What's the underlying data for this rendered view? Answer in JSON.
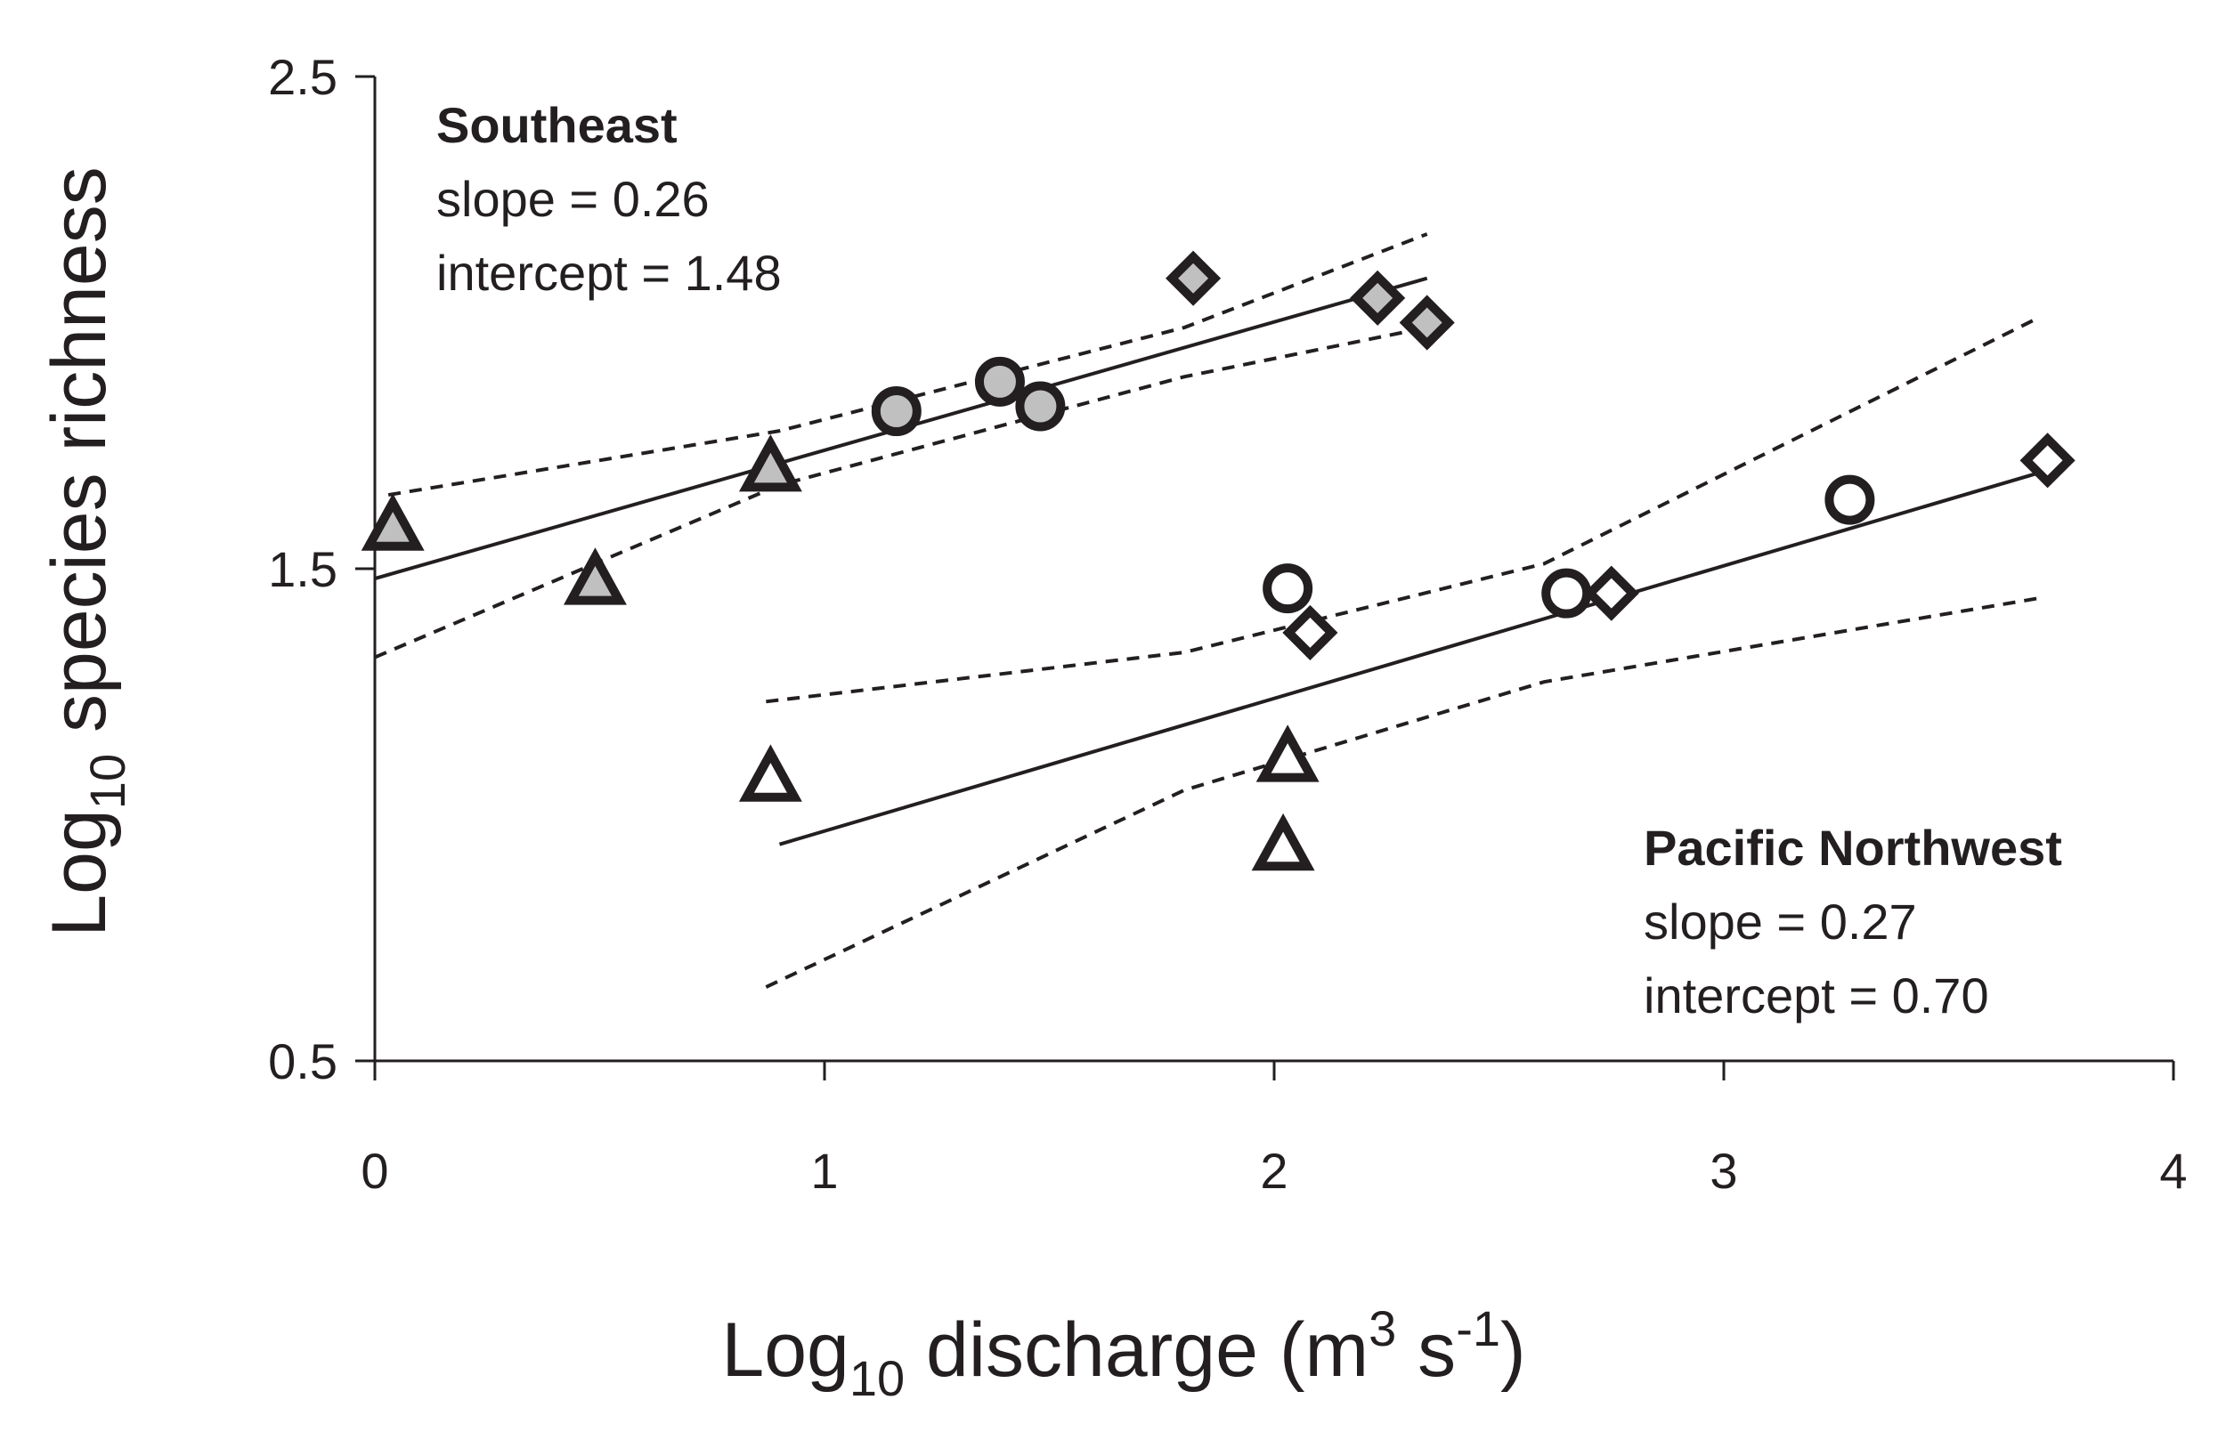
{
  "chart_data": {
    "type": "scatter",
    "title": "",
    "xlabel": {
      "base": "Log",
      "sub": "10",
      "rest": " discharge (m",
      "sup1": "3",
      "mid": " s",
      "sup2": "-1",
      "end": ")"
    },
    "ylabel": {
      "base": "Log",
      "sub": "10",
      "rest": " species richness"
    },
    "xlim": [
      0,
      4
    ],
    "ylim": [
      0.5,
      2.5
    ],
    "x_ticks": [
      "0",
      "1",
      "2",
      "3",
      "4"
    ],
    "y_ticks": [
      "0.5",
      "1.5",
      "2.5"
    ],
    "grid": false,
    "colors": {
      "ink": "#231f20",
      "southeast_fill": "#c0c0c0",
      "pnw_fill": "#ffffff"
    },
    "annotations": [
      {
        "region": "southeast",
        "title": "Southeast",
        "slope": "slope = 0.26",
        "intercept": "intercept = 1.48"
      },
      {
        "region": "pacific-northwest",
        "title": "Pacific Northwest",
        "slope": "slope = 0.27",
        "intercept": "intercept = 0.70"
      }
    ],
    "series": [
      {
        "region": "southeast",
        "marker": "triangle",
        "fill": "#c0c0c0",
        "points": [
          [
            0.04,
            1.58
          ],
          [
            0.49,
            1.47
          ],
          [
            0.88,
            1.7
          ]
        ]
      },
      {
        "region": "southeast",
        "marker": "circle",
        "fill": "#c0c0c0",
        "points": [
          [
            1.16,
            1.82
          ],
          [
            1.39,
            1.88
          ],
          [
            1.48,
            1.83
          ]
        ]
      },
      {
        "region": "southeast",
        "marker": "diamond",
        "fill": "#c0c0c0",
        "points": [
          [
            1.82,
            2.09
          ],
          [
            2.23,
            2.05
          ],
          [
            2.34,
            2.0
          ]
        ]
      },
      {
        "region": "pacific-northwest",
        "marker": "triangle",
        "fill": "#ffffff",
        "points": [
          [
            0.88,
            1.07
          ],
          [
            2.02,
            0.93
          ],
          [
            2.03,
            1.11
          ]
        ]
      },
      {
        "region": "pacific-northwest",
        "marker": "circle",
        "fill": "#ffffff",
        "points": [
          [
            2.03,
            1.46
          ],
          [
            2.65,
            1.45
          ],
          [
            3.28,
            1.64
          ]
        ]
      },
      {
        "region": "pacific-northwest",
        "marker": "diamond",
        "fill": "#ffffff",
        "points": [
          [
            2.08,
            1.37
          ],
          [
            2.75,
            1.45
          ],
          [
            3.72,
            1.72
          ]
        ]
      }
    ],
    "fit_lines": [
      {
        "region": "southeast",
        "points": [
          [
            0.0,
            1.48
          ],
          [
            2.34,
            2.09
          ]
        ]
      },
      {
        "region": "pacific-northwest",
        "points": [
          [
            0.9,
            0.94
          ],
          [
            3.72,
            1.7
          ]
        ]
      }
    ],
    "confidence_bands": [
      {
        "region": "southeast",
        "side": "upper",
        "points": [
          [
            0.03,
            1.65
          ],
          [
            0.9,
            1.78
          ],
          [
            1.8,
            1.99
          ],
          [
            2.34,
            2.18
          ]
        ]
      },
      {
        "region": "southeast",
        "side": "lower",
        "points": [
          [
            0.0,
            1.32
          ],
          [
            0.9,
            1.67
          ],
          [
            1.8,
            1.89
          ],
          [
            2.34,
            1.99
          ]
        ]
      },
      {
        "region": "pacific-northwest",
        "side": "upper",
        "points": [
          [
            0.87,
            1.23
          ],
          [
            1.8,
            1.33
          ],
          [
            2.6,
            1.51
          ],
          [
            3.7,
            2.01
          ]
        ]
      },
      {
        "region": "pacific-northwest",
        "side": "lower",
        "points": [
          [
            0.87,
            0.65
          ],
          [
            1.8,
            1.05
          ],
          [
            2.6,
            1.27
          ],
          [
            3.7,
            1.44
          ]
        ]
      }
    ]
  }
}
